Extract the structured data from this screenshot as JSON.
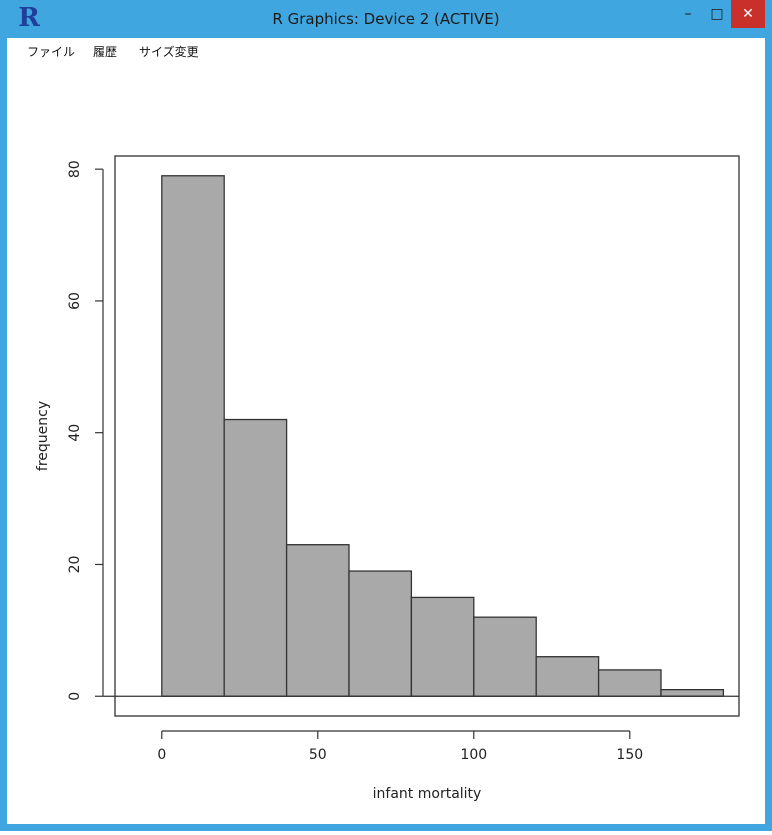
{
  "window": {
    "title": "R Graphics: Device 2 (ACTIVE)",
    "app_icon_glyph": "R",
    "controls": {
      "minimize": "–",
      "maximize": "□",
      "close": "✕"
    },
    "accent_color": "#3fa6df",
    "close_color": "#c9302c"
  },
  "menu": {
    "items": [
      {
        "label": "ファイル"
      },
      {
        "label": "履歴"
      },
      {
        "label": "サイズ変更"
      }
    ]
  },
  "chart_data": {
    "type": "bar",
    "title": "",
    "xlabel": "infant mortality",
    "ylabel": "frequency",
    "bin_edges": [
      0,
      20,
      40,
      60,
      80,
      100,
      120,
      140,
      160,
      180
    ],
    "values": [
      79,
      42,
      23,
      19,
      15,
      12,
      6,
      4,
      1
    ],
    "xlim": [
      -15,
      185
    ],
    "ylim": [
      -3,
      82
    ],
    "x_ticks": [
      0,
      50,
      100,
      150
    ],
    "y_ticks": [
      0,
      20,
      40,
      60,
      80
    ],
    "grid": false,
    "bar_color": "#a9a9a9"
  }
}
